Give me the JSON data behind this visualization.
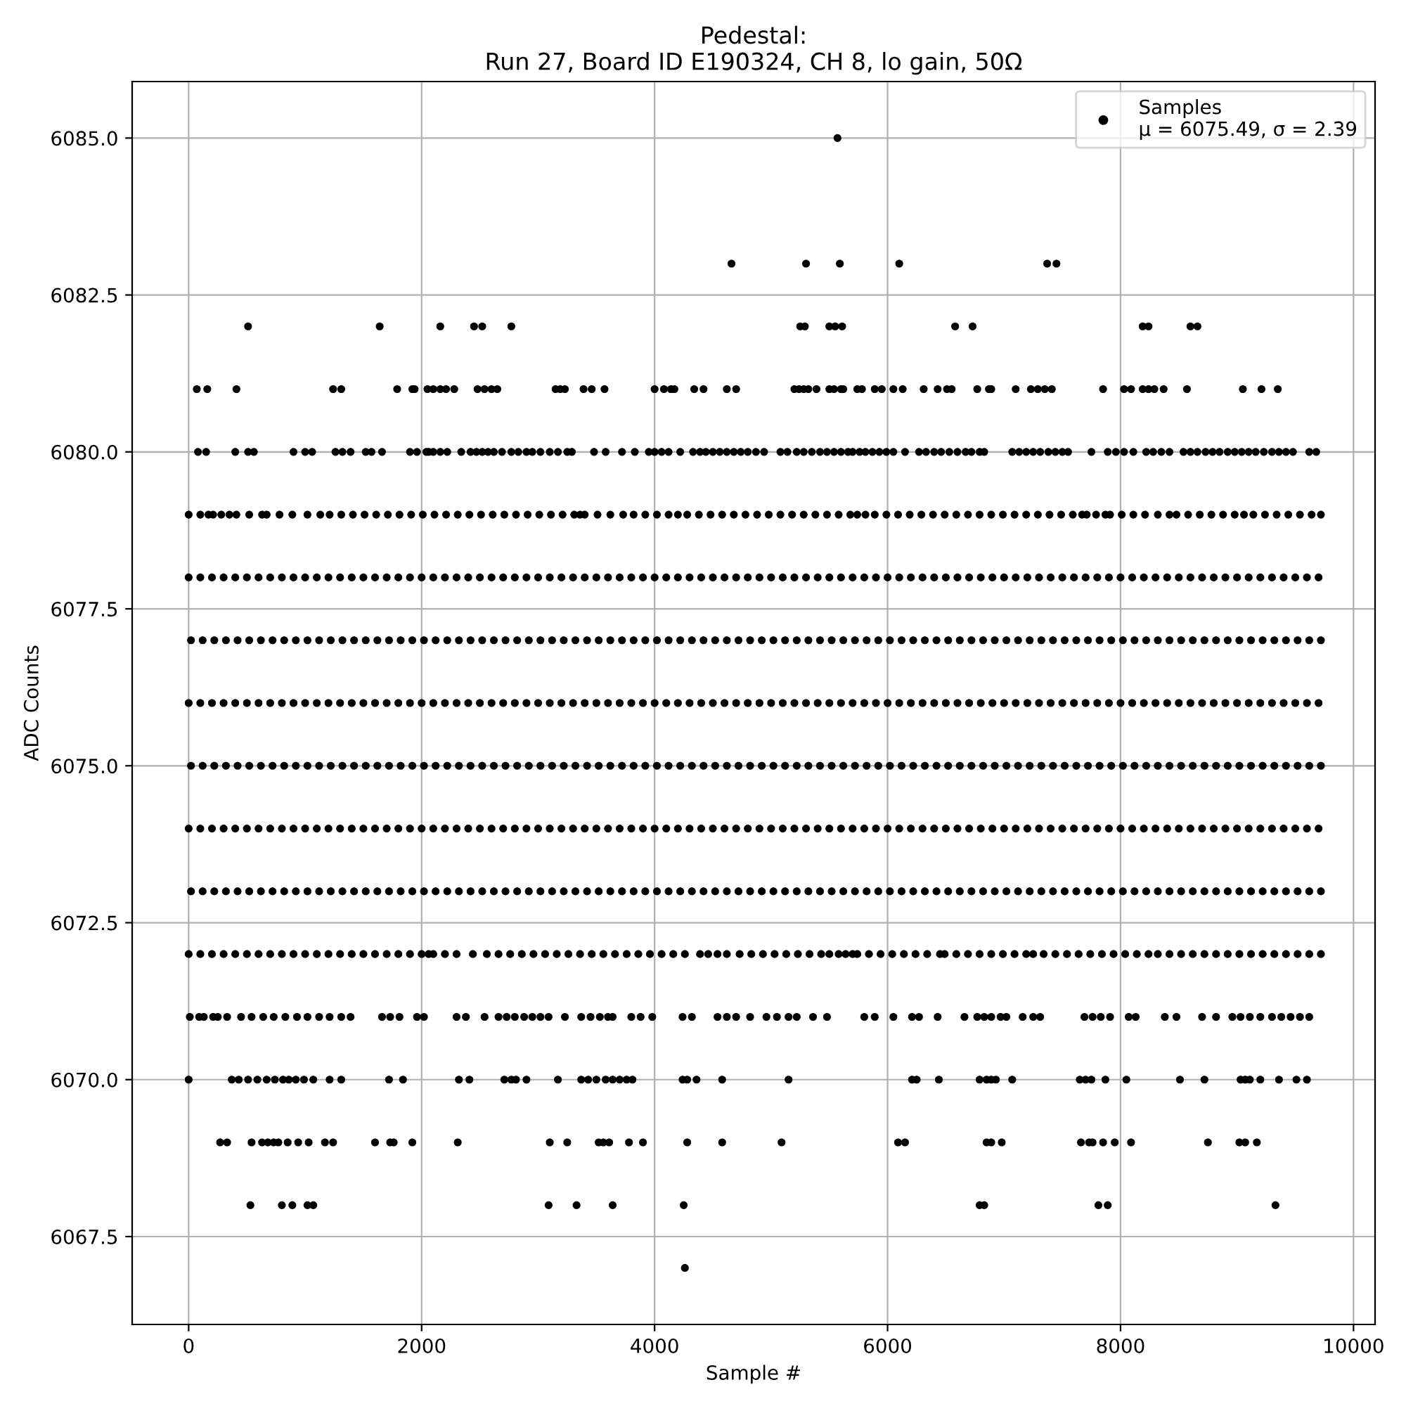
{
  "chart_data": {
    "type": "scatter",
    "title": "Pedestal:\nRun 27, Board ID E190324, CH 8, lo gain, 50Ω",
    "xlabel": "Sample #",
    "ylabel": "ADC Counts",
    "xlim": [
      -485,
      10185
    ],
    "ylim": [
      6066.1,
      6085.9
    ],
    "xticks": [
      0,
      2000,
      4000,
      6000,
      8000,
      10000
    ],
    "yticks": [
      6067.5,
      {
        "value": 6070,
        "label": "6070.0"
      },
      6072.5,
      {
        "value": 6075,
        "label": "6075.0"
      },
      6077.5,
      {
        "value": 6080,
        "label": "6080.0"
      },
      6082.5,
      {
        "value": 6085,
        "label": "6085.0"
      }
    ],
    "grid": true,
    "legend": "top right",
    "marker": "circle",
    "series": [
      {
        "name": "Samples\nμ = 6075.49, σ = 2.39",
        "color": "#000000",
        "x": [
          5570,
          4660,
          5300,
          5590,
          6100,
          7370,
          7450,
          510,
          1640,
          2160,
          2450,
          2520,
          2770,
          5250,
          5290,
          5500,
          5550,
          5610,
          6580,
          6730,
          8190,
          8240,
          8600,
          8660,
          70,
          160,
          410,
          1240,
          1310,
          1790,
          1920,
          1940,
          2050,
          2100,
          2160,
          2210,
          2280,
          2480,
          2540,
          2600,
          2650,
          3150,
          3190,
          3230,
          3390,
          3460,
          3570,
          4000,
          4080,
          4140,
          4170,
          4340,
          4420,
          4620,
          4700,
          5200,
          5240,
          5280,
          5320,
          5390,
          5500,
          5540,
          5600,
          5620,
          5740,
          5780,
          5890,
          5950,
          6050,
          6130,
          6310,
          6430,
          6510,
          6550,
          6770,
          6870,
          6890,
          7100,
          7230,
          7290,
          7350,
          7410,
          7850,
          8030,
          8090,
          8190,
          8240,
          8290,
          8370,
          8570,
          9050,
          9210,
          9350,
          80,
          150,
          400,
          510,
          560,
          900,
          1000,
          1060,
          1260,
          1320,
          1390,
          1520,
          1570,
          1660,
          1900,
          1960,
          2040,
          2060,
          2100,
          2160,
          2220,
          2340,
          2420,
          2470,
          2520,
          2570,
          2620,
          2690,
          2770,
          2830,
          2900,
          2950,
          3020,
          3100,
          3170,
          3250,
          3290,
          3480,
          3580,
          3720,
          3830,
          3950,
          4000,
          4060,
          4120,
          4220,
          4330,
          4390,
          4440,
          4500,
          4560,
          4620,
          4680,
          4740,
          4800,
          4870,
          4940,
          5080,
          5140,
          5220,
          5280,
          5350,
          5420,
          5480,
          5540,
          5600,
          5660,
          5700,
          5760,
          5810,
          5870,
          5930,
          5990,
          6050,
          6150,
          6270,
          6330,
          6400,
          6460,
          6530,
          6600,
          6670,
          6720,
          6790,
          6830,
          7070,
          7130,
          7190,
          7250,
          7310,
          7380,
          7440,
          7500,
          7550,
          7750,
          7890,
          7960,
          8030,
          8110,
          8220,
          8280,
          8350,
          8420,
          8540,
          8600,
          8660,
          8730,
          8790,
          8850,
          8920,
          8980,
          9040,
          9100,
          9160,
          9230,
          9300,
          9360,
          9420,
          9480,
          9620,
          9680,
          0,
          100,
          170,
          210,
          280,
          350,
          410,
          520,
          630,
          670,
          780,
          890,
          1020,
          1130,
          1210,
          1310,
          1410,
          1510,
          1610,
          1710,
          1810,
          1910,
          2010,
          2110,
          2210,
          2310,
          2410,
          2510,
          2610,
          2710,
          2810,
          2910,
          3010,
          3110,
          3210,
          3310,
          3360,
          3400,
          3510,
          3620,
          3730,
          3820,
          3920,
          4020,
          4120,
          4200,
          4280,
          4380,
          4480,
          4580,
          4680,
          4780,
          4880,
          4980,
          5080,
          5180,
          5280,
          5380,
          5480,
          5580,
          5680,
          5740,
          5810,
          5890,
          5990,
          6090,
          6190,
          6290,
          6390,
          6490,
          6590,
          6690,
          6790,
          6890,
          6990,
          7090,
          7190,
          7290,
          7390,
          7490,
          7590,
          7670,
          7710,
          7790,
          7870,
          7910,
          8010,
          8110,
          8210,
          8320,
          8420,
          8480,
          8580,
          8680,
          8780,
          8880,
          8980,
          9060,
          9140,
          9240,
          9340,
          9440,
          9540,
          9640,
          9720,
          0,
          100,
          200,
          300,
          400,
          500,
          600,
          700,
          800,
          900,
          1000,
          1100,
          1200,
          1300,
          1400,
          1500,
          1600,
          1700,
          1800,
          1900,
          2000,
          2100,
          2200,
          2300,
          2400,
          2500,
          2600,
          2700,
          2800,
          2900,
          3000,
          3100,
          3200,
          3300,
          3400,
          3500,
          3600,
          3700,
          3800,
          3900,
          4000,
          4100,
          4200,
          4300,
          4400,
          4500,
          4600,
          4700,
          4800,
          4900,
          5000,
          5100,
          5200,
          5300,
          5400,
          5500,
          5600,
          5700,
          5800,
          5900,
          6000,
          6100,
          6200,
          6300,
          6400,
          6500,
          6600,
          6700,
          6800,
          6900,
          7000,
          7100,
          7200,
          7300,
          7400,
          7500,
          7600,
          7700,
          7800,
          7900,
          8000,
          8100,
          8200,
          8300,
          8400,
          8500,
          8600,
          8700,
          8800,
          8900,
          9000,
          9100,
          9200,
          9300,
          9400,
          9500,
          9600,
          9700,
          20,
          120,
          220,
          320,
          420,
          520,
          620,
          720,
          820,
          920,
          1020,
          1120,
          1220,
          1320,
          1420,
          1520,
          1620,
          1720,
          1820,
          1920,
          2020,
          2120,
          2220,
          2320,
          2420,
          2520,
          2620,
          2720,
          2820,
          2920,
          3020,
          3120,
          3220,
          3320,
          3420,
          3520,
          3620,
          3720,
          3820,
          3920,
          4020,
          4120,
          4220,
          4320,
          4420,
          4520,
          4620,
          4720,
          4820,
          4920,
          5020,
          5120,
          5220,
          5320,
          5420,
          5520,
          5620,
          5720,
          5820,
          5920,
          6020,
          6120,
          6220,
          6320,
          6420,
          6520,
          6620,
          6720,
          6820,
          6920,
          7020,
          7120,
          7220,
          7320,
          7420,
          7520,
          7620,
          7720,
          7820,
          7920,
          8020,
          8120,
          8220,
          8320,
          8420,
          8520,
          8620,
          8720,
          8820,
          8920,
          9020,
          9120,
          9220,
          9320,
          9420,
          9520,
          9620,
          9720,
          0,
          100,
          200,
          300,
          400,
          500,
          600,
          700,
          800,
          900,
          1000,
          1100,
          1200,
          1300,
          1400,
          1500,
          1600,
          1700,
          1800,
          1900,
          2000,
          2100,
          2200,
          2300,
          2400,
          2500,
          2600,
          2700,
          2800,
          2900,
          3000,
          3100,
          3200,
          3300,
          3400,
          3500,
          3600,
          3700,
          3800,
          3900,
          4000,
          4100,
          4200,
          4300,
          4400,
          4500,
          4600,
          4700,
          4800,
          4900,
          5000,
          5100,
          5200,
          5300,
          5400,
          5500,
          5600,
          5700,
          5800,
          5900,
          6000,
          6100,
          6200,
          6300,
          6400,
          6500,
          6600,
          6700,
          6800,
          6900,
          7000,
          7100,
          7200,
          7300,
          7400,
          7500,
          7600,
          7700,
          7800,
          7900,
          8000,
          8100,
          8200,
          8300,
          8400,
          8500,
          8600,
          8700,
          8800,
          8900,
          9000,
          9100,
          9200,
          9300,
          9400,
          9500,
          9600,
          9700,
          20,
          120,
          220,
          320,
          420,
          520,
          620,
          720,
          820,
          920,
          1020,
          1120,
          1220,
          1320,
          1420,
          1520,
          1620,
          1720,
          1820,
          1920,
          2020,
          2120,
          2220,
          2320,
          2420,
          2520,
          2620,
          2720,
          2820,
          2920,
          3020,
          3120,
          3220,
          3320,
          3420,
          3520,
          3620,
          3720,
          3820,
          3920,
          4020,
          4120,
          4220,
          4320,
          4420,
          4520,
          4620,
          4720,
          4820,
          4920,
          5020,
          5120,
          5220,
          5320,
          5420,
          5520,
          5620,
          5720,
          5820,
          5920,
          6020,
          6120,
          6220,
          6320,
          6420,
          6520,
          6620,
          6720,
          6820,
          6920,
          7020,
          7120,
          7220,
          7320,
          7420,
          7520,
          7620,
          7720,
          7820,
          7920,
          8020,
          8120,
          8220,
          8320,
          8420,
          8520,
          8620,
          8720,
          8820,
          8920,
          9020,
          9120,
          9220,
          9320,
          9420,
          9520,
          9620,
          9720,
          0,
          100,
          200,
          300,
          400,
          500,
          600,
          700,
          800,
          900,
          1000,
          1100,
          1200,
          1300,
          1400,
          1500,
          1600,
          1700,
          1800,
          1900,
          2000,
          2100,
          2200,
          2300,
          2400,
          2500,
          2600,
          2700,
          2800,
          2900,
          3000,
          3100,
          3200,
          3300,
          3400,
          3500,
          3600,
          3700,
          3800,
          3900,
          4000,
          4100,
          4200,
          4300,
          4400,
          4500,
          4600,
          4700,
          4800,
          4900,
          5000,
          5100,
          5200,
          5300,
          5400,
          5500,
          5600,
          5700,
          5800,
          5900,
          6000,
          6100,
          6200,
          6300,
          6400,
          6500,
          6600,
          6700,
          6800,
          6900,
          7000,
          7100,
          7200,
          7300,
          7400,
          7500,
          7600,
          7700,
          7800,
          7900,
          8000,
          8100,
          8200,
          8300,
          8400,
          8500,
          8600,
          8700,
          8800,
          8900,
          9000,
          9100,
          9200,
          9300,
          9400,
          9500,
          9600,
          9700,
          20,
          120,
          220,
          320,
          420,
          520,
          620,
          720,
          820,
          920,
          1020,
          1120,
          1220,
          1320,
          1420,
          1520,
          1620,
          1720,
          1820,
          1920,
          2020,
          2120,
          2220,
          2320,
          2420,
          2520,
          2620,
          2720,
          2820,
          2920,
          3020,
          3120,
          3220,
          3320,
          3420,
          3520,
          3620,
          3720,
          3820,
          3920,
          4020,
          4120,
          4220,
          4320,
          4420,
          4520,
          4620,
          4720,
          4820,
          4920,
          5020,
          5120,
          5220,
          5320,
          5420,
          5520,
          5620,
          5720,
          5820,
          5920,
          6020,
          6120,
          6220,
          6320,
          6420,
          6520,
          6620,
          6720,
          6820,
          6920,
          7020,
          7120,
          7220,
          7320,
          7420,
          7520,
          7620,
          7720,
          7820,
          7920,
          8020,
          8120,
          8220,
          8320,
          8420,
          8520,
          8620,
          8720,
          8820,
          8920,
          9020,
          9120,
          9220,
          9320,
          9420,
          9520,
          9620,
          9720,
          0,
          100,
          200,
          300,
          400,
          500,
          600,
          700,
          800,
          900,
          1000,
          1100,
          1200,
          1300,
          1400,
          1500,
          1600,
          1700,
          1800,
          1900,
          2000,
          2060,
          2100,
          2200,
          2300,
          2440,
          2560,
          2660,
          2760,
          2860,
          2960,
          3060,
          3160,
          3260,
          3360,
          3460,
          3560,
          3660,
          3760,
          3860,
          3960,
          4060,
          4160,
          4260,
          4390,
          4460,
          4540,
          4620,
          4730,
          4830,
          4930,
          5030,
          5130,
          5230,
          5330,
          5430,
          5500,
          5580,
          5640,
          5700,
          5740,
          5840,
          5940,
          6040,
          6140,
          6240,
          6340,
          6450,
          6490,
          6590,
          6690,
          6790,
          6890,
          6990,
          7090,
          7190,
          7250,
          7340,
          7440,
          7540,
          7640,
          7740,
          7840,
          7940,
          8040,
          8140,
          8240,
          8320,
          8420,
          8520,
          8620,
          8720,
          8820,
          8920,
          9020,
          9120,
          9220,
          9320,
          9420,
          9520,
          9620,
          9720,
          10,
          90,
          130,
          210,
          250,
          330,
          450,
          540,
          640,
          730,
          830,
          930,
          1020,
          1120,
          1210,
          1310,
          1390,
          1660,
          1730,
          1810,
          1960,
          2020,
          2300,
          2380,
          2540,
          2660,
          2730,
          2800,
          2880,
          2950,
          3020,
          3090,
          3230,
          3370,
          3450,
          3530,
          3600,
          3640,
          3800,
          3880,
          3980,
          4240,
          4320,
          4540,
          4620,
          4700,
          4820,
          4960,
          5050,
          5150,
          5220,
          5360,
          5480,
          5800,
          5890,
          6050,
          6210,
          6270,
          6430,
          6660,
          6770,
          6830,
          6890,
          6970,
          7020,
          7160,
          7250,
          7310,
          7690,
          7760,
          7830,
          7910,
          8070,
          8130,
          8380,
          8480,
          8700,
          8820,
          8960,
          9030,
          9110,
          9200,
          9300,
          9380,
          9460,
          9540,
          9620,
          0,
          370,
          430,
          510,
          590,
          670,
          740,
          810,
          860,
          920,
          990,
          1070,
          1210,
          1310,
          1720,
          1840,
          2320,
          2410,
          2710,
          2770,
          2810,
          2900,
          3170,
          3370,
          3430,
          3500,
          3580,
          3640,
          3700,
          3760,
          3810,
          4240,
          4280,
          4360,
          4580,
          5150,
          6210,
          6250,
          6440,
          6790,
          6850,
          6890,
          6930,
          7070,
          7650,
          7700,
          7750,
          7870,
          8050,
          8510,
          8720,
          9030,
          9070,
          9110,
          9200,
          9360,
          9510,
          9600,
          270,
          330,
          540,
          630,
          680,
          730,
          770,
          850,
          940,
          1030,
          1170,
          1240,
          1600,
          1730,
          1760,
          1920,
          2310,
          3100,
          3250,
          3520,
          3560,
          3610,
          3780,
          3900,
          4280,
          4580,
          5090,
          6090,
          6150,
          6850,
          6890,
          6980,
          7660,
          7730,
          7760,
          7850,
          7950,
          8090,
          8750,
          9020,
          9070,
          9170,
          530,
          800,
          890,
          1020,
          1070,
          3090,
          3330,
          3640,
          4250,
          6790,
          6830,
          7810,
          7890,
          9330,
          4260
        ],
        "values": [
          6085,
          6083,
          6083,
          6083,
          6083,
          6083,
          6083,
          6082,
          6082,
          6082,
          6082,
          6082,
          6082,
          6082,
          6082,
          6082,
          6082,
          6082,
          6082,
          6082,
          6082,
          6082,
          6082,
          6082,
          6081,
          6081,
          6081,
          6081,
          6081,
          6081,
          6081,
          6081,
          6081,
          6081,
          6081,
          6081,
          6081,
          6081,
          6081,
          6081,
          6081,
          6081,
          6081,
          6081,
          6081,
          6081,
          6081,
          6081,
          6081,
          6081,
          6081,
          6081,
          6081,
          6081,
          6081,
          6081,
          6081,
          6081,
          6081,
          6081,
          6081,
          6081,
          6081,
          6081,
          6081,
          6081,
          6081,
          6081,
          6081,
          6081,
          6081,
          6081,
          6081,
          6081,
          6081,
          6081,
          6081,
          6081,
          6081,
          6081,
          6081,
          6081,
          6081,
          6081,
          6081,
          6081,
          6081,
          6081,
          6081,
          6081,
          6081,
          6081,
          6081,
          6080,
          6080,
          6080,
          6080,
          6080,
          6080,
          6080,
          6080,
          6080,
          6080,
          6080,
          6080,
          6080,
          6080,
          6080,
          6080,
          6080,
          6080,
          6080,
          6080,
          6080,
          6080,
          6080,
          6080,
          6080,
          6080,
          6080,
          6080,
          6080,
          6080,
          6080,
          6080,
          6080,
          6080,
          6080,
          6080,
          6080,
          6080,
          6080,
          6080,
          6080,
          6080,
          6080,
          6080,
          6080,
          6080,
          6080,
          6080,
          6080,
          6080,
          6080,
          6080,
          6080,
          6080,
          6080,
          6080,
          6080,
          6080,
          6080,
          6080,
          6080,
          6080,
          6080,
          6080,
          6080,
          6080,
          6080,
          6080,
          6080,
          6080,
          6080,
          6080,
          6080,
          6080,
          6080,
          6080,
          6080,
          6080,
          6080,
          6080,
          6080,
          6080,
          6080,
          6080,
          6080,
          6080,
          6080,
          6080,
          6080,
          6080,
          6080,
          6080,
          6080,
          6080,
          6080,
          6080,
          6080,
          6080,
          6080,
          6080,
          6080,
          6080,
          6080,
          6080,
          6080,
          6080,
          6080,
          6080,
          6080,
          6080,
          6080,
          6080,
          6080,
          6080,
          6080,
          6080,
          6080,
          6080,
          6080,
          6080,
          6080,
          6079,
          6079,
          6079,
          6079,
          6079,
          6079,
          6079,
          6079,
          6079,
          6079,
          6079,
          6079,
          6079,
          6079,
          6079,
          6079,
          6079,
          6079,
          6079,
          6079,
          6079,
          6079,
          6079,
          6079,
          6079,
          6079,
          6079,
          6079,
          6079,
          6079,
          6079,
          6079,
          6079,
          6079,
          6079,
          6079,
          6079,
          6079,
          6079,
          6079,
          6079,
          6079,
          6079,
          6079,
          6079,
          6079,
          6079,
          6079,
          6079,
          6079,
          6079,
          6079,
          6079,
          6079,
          6079,
          6079,
          6079,
          6079,
          6079,
          6079,
          6079,
          6079,
          6079,
          6079,
          6079,
          6079,
          6079,
          6079,
          6079,
          6079,
          6079,
          6079,
          6079,
          6079,
          6079,
          6079,
          6079,
          6079,
          6079,
          6079,
          6079,
          6079,
          6079,
          6079,
          6079,
          6079,
          6079,
          6079,
          6079,
          6079,
          6079,
          6079,
          6079,
          6079,
          6079,
          6079,
          6079,
          6079,
          6079,
          6079,
          6079,
          6079,
          6079,
          6079,
          6079,
          6078,
          6078,
          6078,
          6078,
          6078,
          6078,
          6078,
          6078,
          6078,
          6078,
          6078,
          6078,
          6078,
          6078,
          6078,
          6078,
          6078,
          6078,
          6078,
          6078,
          6078,
          6078,
          6078,
          6078,
          6078,
          6078,
          6078,
          6078,
          6078,
          6078,
          6078,
          6078,
          6078,
          6078,
          6078,
          6078,
          6078,
          6078,
          6078,
          6078,
          6078,
          6078,
          6078,
          6078,
          6078,
          6078,
          6078,
          6078,
          6078,
          6078,
          6078,
          6078,
          6078,
          6078,
          6078,
          6078,
          6078,
          6078,
          6078,
          6078,
          6078,
          6078,
          6078,
          6078,
          6078,
          6078,
          6078,
          6078,
          6078,
          6078,
          6078,
          6078,
          6078,
          6078,
          6078,
          6078,
          6078,
          6078,
          6078,
          6078,
          6078,
          6078,
          6078,
          6078,
          6078,
          6078,
          6078,
          6078,
          6078,
          6078,
          6078,
          6078,
          6078,
          6078,
          6078,
          6078,
          6078,
          6078,
          6077,
          6077,
          6077,
          6077,
          6077,
          6077,
          6077,
          6077,
          6077,
          6077,
          6077,
          6077,
          6077,
          6077,
          6077,
          6077,
          6077,
          6077,
          6077,
          6077,
          6077,
          6077,
          6077,
          6077,
          6077,
          6077,
          6077,
          6077,
          6077,
          6077,
          6077,
          6077,
          6077,
          6077,
          6077,
          6077,
          6077,
          6077,
          6077,
          6077,
          6077,
          6077,
          6077,
          6077,
          6077,
          6077,
          6077,
          6077,
          6077,
          6077,
          6077,
          6077,
          6077,
          6077,
          6077,
          6077,
          6077,
          6077,
          6077,
          6077,
          6077,
          6077,
          6077,
          6077,
          6077,
          6077,
          6077,
          6077,
          6077,
          6077,
          6077,
          6077,
          6077,
          6077,
          6077,
          6077,
          6077,
          6077,
          6077,
          6077,
          6077,
          6077,
          6077,
          6077,
          6077,
          6077,
          6077,
          6077,
          6077,
          6077,
          6077,
          6077,
          6077,
          6077,
          6077,
          6077,
          6077,
          6077,
          6076,
          6076,
          6076,
          6076,
          6076,
          6076,
          6076,
          6076,
          6076,
          6076,
          6076,
          6076,
          6076,
          6076,
          6076,
          6076,
          6076,
          6076,
          6076,
          6076,
          6076,
          6076,
          6076,
          6076,
          6076,
          6076,
          6076,
          6076,
          6076,
          6076,
          6076,
          6076,
          6076,
          6076,
          6076,
          6076,
          6076,
          6076,
          6076,
          6076,
          6076,
          6076,
          6076,
          6076,
          6076,
          6076,
          6076,
          6076,
          6076,
          6076,
          6076,
          6076,
          6076,
          6076,
          6076,
          6076,
          6076,
          6076,
          6076,
          6076,
          6076,
          6076,
          6076,
          6076,
          6076,
          6076,
          6076,
          6076,
          6076,
          6076,
          6076,
          6076,
          6076,
          6076,
          6076,
          6076,
          6076,
          6076,
          6076,
          6076,
          6076,
          6076,
          6076,
          6076,
          6076,
          6076,
          6076,
          6076,
          6076,
          6076,
          6076,
          6076,
          6076,
          6076,
          6076,
          6076,
          6076,
          6076,
          6075,
          6075,
          6075,
          6075,
          6075,
          6075,
          6075,
          6075,
          6075,
          6075,
          6075,
          6075,
          6075,
          6075,
          6075,
          6075,
          6075,
          6075,
          6075,
          6075,
          6075,
          6075,
          6075,
          6075,
          6075,
          6075,
          6075,
          6075,
          6075,
          6075,
          6075,
          6075,
          6075,
          6075,
          6075,
          6075,
          6075,
          6075,
          6075,
          6075,
          6075,
          6075,
          6075,
          6075,
          6075,
          6075,
          6075,
          6075,
          6075,
          6075,
          6075,
          6075,
          6075,
          6075,
          6075,
          6075,
          6075,
          6075,
          6075,
          6075,
          6075,
          6075,
          6075,
          6075,
          6075,
          6075,
          6075,
          6075,
          6075,
          6075,
          6075,
          6075,
          6075,
          6075,
          6075,
          6075,
          6075,
          6075,
          6075,
          6075,
          6075,
          6075,
          6075,
          6075,
          6075,
          6075,
          6075,
          6075,
          6075,
          6075,
          6075,
          6075,
          6075,
          6075,
          6075,
          6075,
          6075,
          6075,
          6074,
          6074,
          6074,
          6074,
          6074,
          6074,
          6074,
          6074,
          6074,
          6074,
          6074,
          6074,
          6074,
          6074,
          6074,
          6074,
          6074,
          6074,
          6074,
          6074,
          6074,
          6074,
          6074,
          6074,
          6074,
          6074,
          6074,
          6074,
          6074,
          6074,
          6074,
          6074,
          6074,
          6074,
          6074,
          6074,
          6074,
          6074,
          6074,
          6074,
          6074,
          6074,
          6074,
          6074,
          6074,
          6074,
          6074,
          6074,
          6074,
          6074,
          6074,
          6074,
          6074,
          6074,
          6074,
          6074,
          6074,
          6074,
          6074,
          6074,
          6074,
          6074,
          6074,
          6074,
          6074,
          6074,
          6074,
          6074,
          6074,
          6074,
          6074,
          6074,
          6074,
          6074,
          6074,
          6074,
          6074,
          6074,
          6074,
          6074,
          6074,
          6074,
          6074,
          6074,
          6074,
          6074,
          6074,
          6074,
          6074,
          6074,
          6074,
          6074,
          6074,
          6074,
          6074,
          6074,
          6074,
          6074,
          6073,
          6073,
          6073,
          6073,
          6073,
          6073,
          6073,
          6073,
          6073,
          6073,
          6073,
          6073,
          6073,
          6073,
          6073,
          6073,
          6073,
          6073,
          6073,
          6073,
          6073,
          6073,
          6073,
          6073,
          6073,
          6073,
          6073,
          6073,
          6073,
          6073,
          6073,
          6073,
          6073,
          6073,
          6073,
          6073,
          6073,
          6073,
          6073,
          6073,
          6073,
          6073,
          6073,
          6073,
          6073,
          6073,
          6073,
          6073,
          6073,
          6073,
          6073,
          6073,
          6073,
          6073,
          6073,
          6073,
          6073,
          6073,
          6073,
          6073,
          6073,
          6073,
          6073,
          6073,
          6073,
          6073,
          6073,
          6073,
          6073,
          6073,
          6073,
          6073,
          6073,
          6073,
          6073,
          6073,
          6073,
          6073,
          6073,
          6073,
          6073,
          6073,
          6073,
          6073,
          6073,
          6073,
          6073,
          6073,
          6073,
          6073,
          6073,
          6073,
          6073,
          6073,
          6073,
          6073,
          6073,
          6073,
          6072,
          6072,
          6072,
          6072,
          6072,
          6072,
          6072,
          6072,
          6072,
          6072,
          6072,
          6072,
          6072,
          6072,
          6072,
          6072,
          6072,
          6072,
          6072,
          6072,
          6072,
          6072,
          6072,
          6072,
          6072,
          6072,
          6072,
          6072,
          6072,
          6072,
          6072,
          6072,
          6072,
          6072,
          6072,
          6072,
          6072,
          6072,
          6072,
          6072,
          6072,
          6072,
          6072,
          6072,
          6072,
          6072,
          6072,
          6072,
          6072,
          6072,
          6072,
          6072,
          6072,
          6072,
          6072,
          6072,
          6072,
          6072,
          6072,
          6072,
          6072,
          6072,
          6072,
          6072,
          6072,
          6072,
          6072,
          6072,
          6072,
          6072,
          6072,
          6072,
          6072,
          6072,
          6072,
          6072,
          6072,
          6072,
          6072,
          6072,
          6072,
          6072,
          6072,
          6072,
          6072,
          6072,
          6072,
          6072,
          6072,
          6072,
          6072,
          6072,
          6072,
          6072,
          6072,
          6072,
          6072,
          6072,
          6072,
          6072,
          6072,
          6072,
          6071,
          6071,
          6071,
          6071,
          6071,
          6071,
          6071,
          6071,
          6071,
          6071,
          6071,
          6071,
          6071,
          6071,
          6071,
          6071,
          6071,
          6071,
          6071,
          6071,
          6071,
          6071,
          6071,
          6071,
          6071,
          6071,
          6071,
          6071,
          6071,
          6071,
          6071,
          6071,
          6071,
          6071,
          6071,
          6071,
          6071,
          6071,
          6071,
          6071,
          6071,
          6071,
          6071,
          6071,
          6071,
          6071,
          6071,
          6071,
          6071,
          6071,
          6071,
          6071,
          6071,
          6071,
          6071,
          6071,
          6071,
          6071,
          6071,
          6071,
          6071,
          6071,
          6071,
          6071,
          6071,
          6071,
          6071,
          6071,
          6071,
          6071,
          6071,
          6071,
          6071,
          6071,
          6071,
          6071,
          6071,
          6071,
          6071,
          6071,
          6071,
          6071,
          6071,
          6071,
          6071,
          6071,
          6071,
          6070,
          6070,
          6070,
          6070,
          6070,
          6070,
          6070,
          6070,
          6070,
          6070,
          6070,
          6070,
          6070,
          6070,
          6070,
          6070,
          6070,
          6070,
          6070,
          6070,
          6070,
          6070,
          6070,
          6070,
          6070,
          6070,
          6070,
          6070,
          6070,
          6070,
          6070,
          6070,
          6070,
          6070,
          6070,
          6070,
          6070,
          6070,
          6070,
          6070,
          6070,
          6070,
          6070,
          6070,
          6070,
          6070,
          6070,
          6070,
          6070,
          6070,
          6070,
          6070,
          6070,
          6070,
          6070,
          6070,
          6070,
          6070,
          6069,
          6069,
          6069,
          6069,
          6069,
          6069,
          6069,
          6069,
          6069,
          6069,
          6069,
          6069,
          6069,
          6069,
          6069,
          6069,
          6069,
          6069,
          6069,
          6069,
          6069,
          6069,
          6069,
          6069,
          6069,
          6069,
          6069,
          6069,
          6069,
          6069,
          6069,
          6069,
          6069,
          6069,
          6069,
          6069,
          6069,
          6069,
          6069,
          6069,
          6069,
          6069,
          6068,
          6068,
          6068,
          6068,
          6068,
          6068,
          6068,
          6068,
          6068,
          6068,
          6068,
          6068,
          6068,
          6068,
          6067
        ]
      }
    ]
  }
}
